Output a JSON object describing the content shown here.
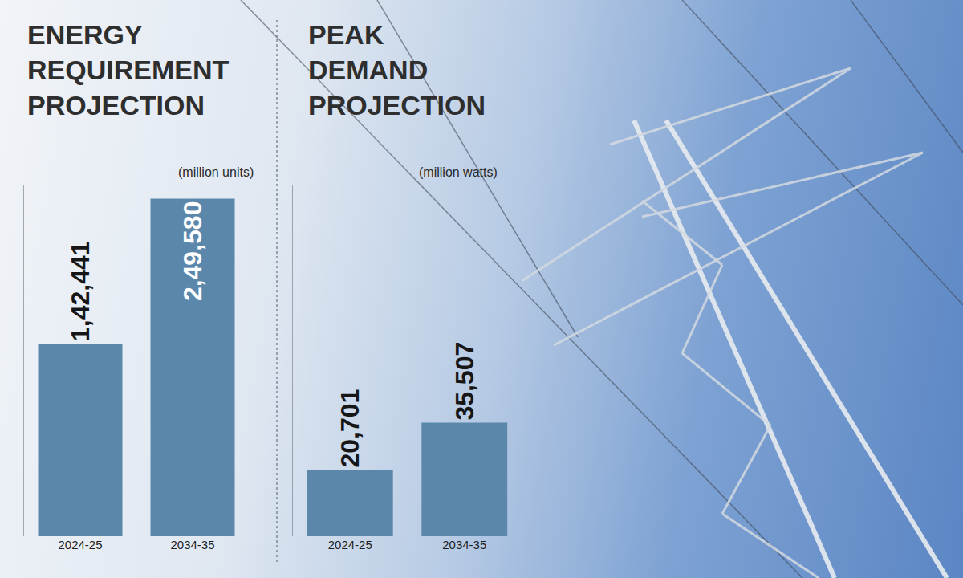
{
  "chart_data": [
    {
      "type": "bar",
      "title": "ENERGY REQUIREMENT PROJECTION",
      "subtitle": "(million units)",
      "categories": [
        "2024-25",
        "2034-35"
      ],
      "values": [
        142441,
        249580
      ],
      "value_labels": [
        "1,42,441",
        "2,49,580"
      ],
      "color": "#5b87ab",
      "ylim": [
        0,
        260000
      ],
      "data_labels": true,
      "tick_labels": "x",
      "grid": false
    },
    {
      "type": "bar",
      "title": "PEAK DEMAND PROJECTION",
      "subtitle": "(million watts)",
      "categories": [
        "2024-25",
        "2034-35"
      ],
      "values": [
        20701,
        35507
      ],
      "value_labels": [
        "20,701",
        "35,507"
      ],
      "color": "#5b87ab",
      "ylim": [
        0,
        110000
      ],
      "data_labels": true,
      "tick_labels": "x",
      "grid": false
    }
  ]
}
